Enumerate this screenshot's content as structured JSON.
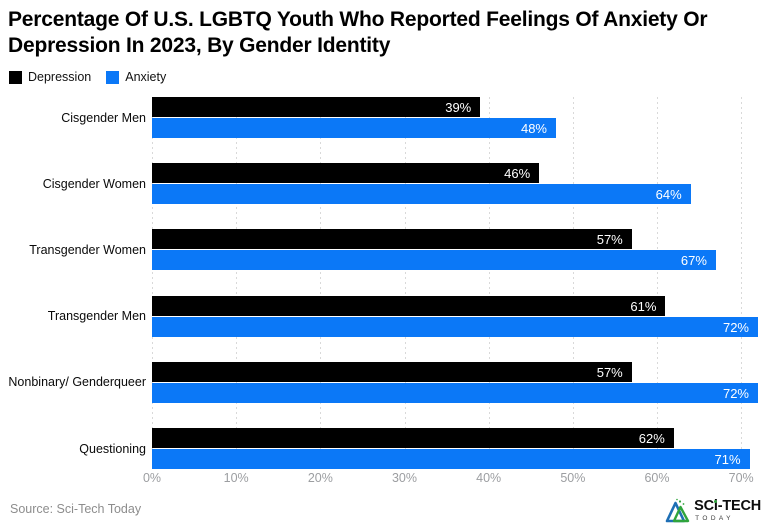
{
  "chart_data": {
    "type": "bar",
    "orientation": "horizontal",
    "title": "Percentage Of U.S. LGBTQ Youth Who Reported Feelings Of Anxiety Or Depression In 2023, By Gender Identity",
    "categories": [
      "Cisgender Men",
      "Cisgender Women",
      "Transgender Women",
      "Transgender Men",
      "Nonbinary/ Genderqueer",
      "Questioning"
    ],
    "series": [
      {
        "name": "Depression",
        "color": "#000000",
        "values": [
          39,
          46,
          57,
          61,
          57,
          62
        ]
      },
      {
        "name": "Anxiety",
        "color": "#0b78f7",
        "values": [
          48,
          64,
          67,
          72,
          72,
          71
        ]
      }
    ],
    "value_suffix": "%",
    "xlim": [
      0,
      72
    ],
    "x_ticks": [
      {
        "value": 0,
        "label": "0%"
      },
      {
        "value": 10,
        "label": "10%"
      },
      {
        "value": 20,
        "label": "20%"
      },
      {
        "value": 30,
        "label": "30%"
      },
      {
        "value": 40,
        "label": "40%"
      },
      {
        "value": 50,
        "label": "50%"
      },
      {
        "value": 60,
        "label": "60%"
      },
      {
        "value": 70,
        "label": "70%"
      }
    ],
    "grid": true,
    "gridline_color": "#d9d9d9",
    "legend_position": "top-left"
  },
  "footer": {
    "source": "Source: Sci-Tech Today",
    "logo": {
      "line1": "SCi-TECH",
      "line2": "TODAY"
    }
  }
}
